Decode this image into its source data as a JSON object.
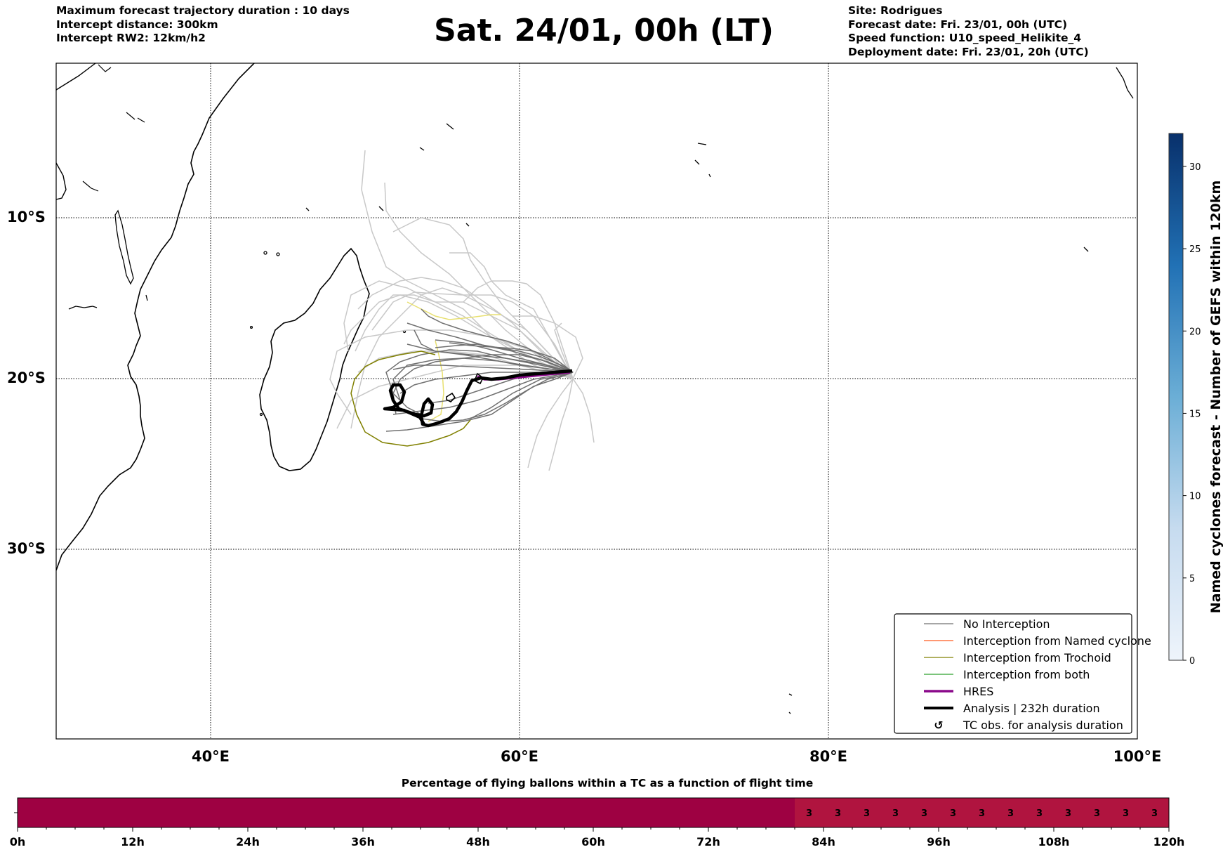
{
  "header": {
    "left_lines": [
      "Maximum forecast trajectory duration : 10 days",
      "Intercept distance: 300km",
      "Intercept RW2: 12km/h2"
    ],
    "title": "Sat. 24/01, 00h (LT)",
    "right_lines": [
      "Site: Rodrigues",
      "Forecast date: Fri. 23/01, 00h (UTC)",
      "Speed function: U10_speed_Helikite_4",
      "Deployment date: Fri. 23/01, 20h (UTC)"
    ]
  },
  "map": {
    "lat_labels": [
      "10°S",
      "20°S",
      "30°S"
    ],
    "lon_labels": [
      "40°E",
      "60°E",
      "80°E",
      "100°E"
    ],
    "colors": {
      "no_interception": "#707070",
      "named_cyclone": "#ff5a1f",
      "trochoid": "#808000",
      "both": "#2ca02c",
      "hres": "#8b0a8b",
      "analysis": "#000000",
      "light_traj": "#c8c8c8",
      "yellow_traj": "#e8e070"
    }
  },
  "legend": {
    "items": [
      {
        "label": "No Interception",
        "key": "no_interception"
      },
      {
        "label": "Interception from Named cyclone",
        "key": "named_cyclone"
      },
      {
        "label": "Interception from Trochoid",
        "key": "trochoid"
      },
      {
        "label": "Interception from both",
        "key": "both"
      },
      {
        "label": "HRES",
        "key": "hres"
      },
      {
        "label": "Analysis | 232h duration",
        "key": "analysis"
      },
      {
        "label": "TC obs. for analysis duration",
        "key": "tc_obs",
        "symbol": "↺"
      }
    ]
  },
  "colorbar": {
    "label": "Named cyclones forecast - Number of GEFS within 120km",
    "ticks": [
      0,
      5,
      10,
      15,
      20,
      25,
      30
    ],
    "min": 0,
    "max": 32
  },
  "time_bar": {
    "title": "Percentage of flying ballons within a TC as a function of flight time",
    "tick_labels": [
      "0h",
      "12h",
      "24h",
      "36h",
      "48h",
      "60h",
      "72h",
      "84h",
      "96h",
      "108h",
      "120h"
    ],
    "max_hours": 120,
    "segments": [
      {
        "start_h": 0,
        "end_h": 81,
        "color": "#9e0142",
        "value_label": ""
      },
      {
        "start_h": 81,
        "end_h": 120,
        "color": "#b0143f",
        "value_label": "3"
      }
    ],
    "value_labels_hours": [
      82.5,
      85.5,
      88.5,
      91.5,
      94.5,
      97.5,
      100.5,
      103.5,
      106.5,
      109.5,
      112.5,
      115.5,
      118.5
    ],
    "value_label": "3"
  }
}
